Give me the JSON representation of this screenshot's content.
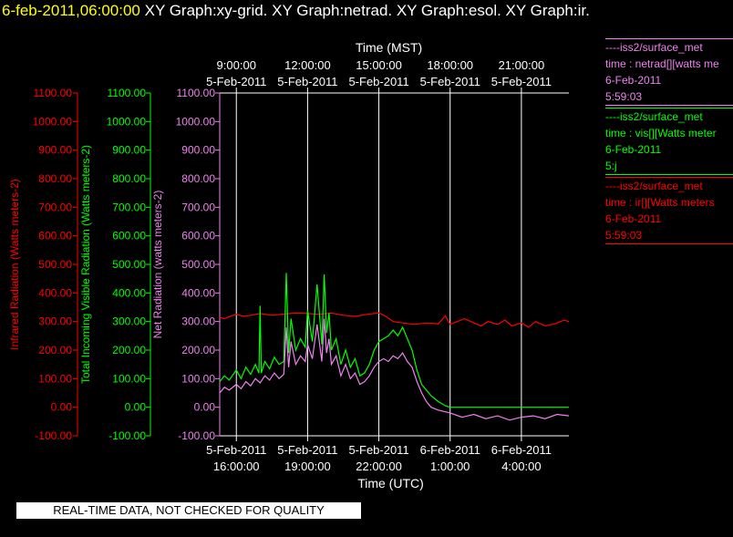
{
  "title": {
    "date": "6-feb-2011,06:00:00",
    "graphs": "XY Graph:xy-grid.  XY Graph:netrad.  XY Graph:esol.  XY Graph:ir."
  },
  "colors": {
    "ir": "#ff0000",
    "vis": "#00ff00",
    "netrad": "#ee82ee",
    "axis": "#ffffff",
    "title_date": "#ffff00"
  },
  "legend": [
    {
      "color": "#ee82ee",
      "lines": [
        "----iss2/surface_met",
        "time : netrad[][watts me",
        "6-Feb-2011",
        "5:59:03"
      ]
    },
    {
      "color": "#00ff00",
      "lines": [
        "----iss2/surface_met",
        "time : vis[][Watts meter",
        "6-Feb-2011",
        "5:j"
      ]
    },
    {
      "color": "#ff0000",
      "lines": [
        "----iss2/surface_met",
        "time : ir[][Watts meters",
        "6-Feb-2011",
        "5:59:03"
      ]
    }
  ],
  "notice": "REAL-TIME DATA, NOT CHECKED FOR QUALITY",
  "chart_data": {
    "type": "line",
    "top_axis": {
      "title": "Time (MST)",
      "ticks": [
        {
          "hours": 0,
          "time": "9:00:00",
          "date": "5-Feb-2011"
        },
        {
          "hours": 3,
          "time": "12:00:00",
          "date": "5-Feb-2011"
        },
        {
          "hours": 6,
          "time": "15:00:00",
          "date": "5-Feb-2011"
        },
        {
          "hours": 9,
          "time": "18:00:00",
          "date": "5-Feb-2011"
        },
        {
          "hours": 12,
          "time": "21:00:00",
          "date": "5-Feb-2011"
        }
      ]
    },
    "bottom_axis": {
      "title": "Time (UTC)",
      "ticks": [
        {
          "hours": 0,
          "date": "5-Feb-2011",
          "time": "16:00:00"
        },
        {
          "hours": 3,
          "date": "5-Feb-2011",
          "time": "19:00:00"
        },
        {
          "hours": 6,
          "date": "5-Feb-2011",
          "time": "22:00:00"
        },
        {
          "hours": 9,
          "date": "6-Feb-2011",
          "time": "1:00:00"
        },
        {
          "hours": 12,
          "date": "6-Feb-2011",
          "time": "4:00:00"
        }
      ]
    },
    "x_range_hours": [
      -0.7,
      14.0
    ],
    "x_note": "hours after 5-Feb-2011 16:00 UTC (9:00 MST)",
    "y_axes": [
      {
        "id": "ir",
        "label": "Infrared Radiation (Watts meters-2)",
        "color": "#ff0000",
        "range": [
          -100,
          1100
        ],
        "tick_labels": [
          "-100.00",
          "0.00",
          "100.00",
          "200.00",
          "300.00",
          "400.00",
          "500.00",
          "600.00",
          "700.00",
          "800.00",
          "900.00",
          "1000.00",
          "1100.00"
        ]
      },
      {
        "id": "vis",
        "label": "Total Incoming Visible Radiation (Watts meters-2)",
        "color": "#00ff00",
        "range": [
          -100,
          1100
        ],
        "tick_labels": [
          "-100.00",
          "0.00",
          "100.00",
          "200.00",
          "300.00",
          "400.00",
          "500.00",
          "600.00",
          "700.00",
          "800.00",
          "900.00",
          "1000.00",
          "1100.00"
        ]
      },
      {
        "id": "netrad",
        "label": "Net Radiation (watts meters-2)",
        "color": "#ee82ee",
        "range": [
          -100,
          1100
        ],
        "tick_labels": [
          "-100.00",
          "0.00",
          "100.00",
          "200.00",
          "300.00",
          "400.00",
          "500.00",
          "600.00",
          "700.00",
          "800.00",
          "900.00",
          "1000.00",
          "1100.00"
        ]
      }
    ],
    "vertical_grid_hours": [
      0,
      3,
      6,
      9,
      12
    ],
    "series": [
      {
        "id": "ir",
        "color": "#ff0000",
        "x": [
          -0.7,
          -0.5,
          -0.2,
          0,
          0.3,
          0.6,
          1,
          1.5,
          2,
          2.5,
          3,
          3.5,
          4,
          4.5,
          5,
          5.5,
          6,
          6.3,
          6.6,
          7,
          7.5,
          8,
          8.5,
          8.8,
          9,
          9.3,
          9.6,
          10,
          10.3,
          10.6,
          11,
          11.3,
          11.6,
          12,
          12.3,
          12.6,
          13,
          13.4,
          13.8,
          14
        ],
        "y": [
          315,
          310,
          320,
          325,
          318,
          322,
          328,
          322,
          326,
          330,
          328,
          325,
          330,
          322,
          318,
          325,
          330,
          318,
          300,
          295,
          290,
          295,
          292,
          320,
          290,
          300,
          310,
          295,
          285,
          300,
          290,
          305,
          285,
          295,
          280,
          300,
          285,
          292,
          305,
          300
        ]
      },
      {
        "id": "vis",
        "color": "#00ff00",
        "x": [
          -0.7,
          -0.5,
          -0.3,
          0,
          0.2,
          0.4,
          0.6,
          0.8,
          0.95,
          1.0,
          1.05,
          1.2,
          1.4,
          1.6,
          1.8,
          2.0,
          2.1,
          2.2,
          2.3,
          2.5,
          2.7,
          2.9,
          3.0,
          3.2,
          3.4,
          3.6,
          3.7,
          3.8,
          3.9,
          4.0,
          4.2,
          4.4,
          4.6,
          4.8,
          5.0,
          5.2,
          5.4,
          5.6,
          5.8,
          6.0,
          6.2,
          6.4,
          6.6,
          6.8,
          7.0,
          7.2,
          7.4,
          7.6,
          7.8,
          8.0,
          8.2,
          8.5,
          8.8,
          9.0,
          9.5,
          10,
          11,
          12,
          13,
          14
        ],
        "y": [
          90,
          110,
          95,
          130,
          100,
          140,
          115,
          150,
          120,
          355,
          120,
          160,
          135,
          175,
          150,
          160,
          470,
          190,
          310,
          200,
          240,
          210,
          340,
          230,
          430,
          220,
          465,
          260,
          330,
          200,
          240,
          150,
          200,
          140,
          170,
          110,
          120,
          150,
          200,
          230,
          240,
          250,
          270,
          250,
          280,
          240,
          200,
          130,
          80,
          60,
          40,
          20,
          5,
          0,
          0,
          0,
          0,
          0,
          0,
          0
        ]
      },
      {
        "id": "netrad",
        "color": "#ee82ee",
        "x": [
          -0.7,
          -0.5,
          -0.3,
          0,
          0.2,
          0.4,
          0.6,
          0.8,
          1.0,
          1.2,
          1.4,
          1.6,
          1.8,
          2.0,
          2.1,
          2.2,
          2.3,
          2.5,
          2.7,
          2.9,
          3.0,
          3.2,
          3.4,
          3.6,
          3.7,
          3.8,
          3.9,
          4.0,
          4.2,
          4.4,
          4.6,
          4.8,
          5.0,
          5.2,
          5.4,
          5.6,
          5.8,
          6.0,
          6.2,
          6.4,
          6.6,
          6.8,
          7.0,
          7.2,
          7.4,
          7.6,
          7.8,
          8.0,
          8.2,
          8.5,
          9.0,
          9.5,
          10,
          10.5,
          11,
          11.5,
          12,
          12.5,
          13,
          13.5,
          14
        ],
        "y": [
          50,
          70,
          60,
          80,
          65,
          90,
          75,
          100,
          85,
          110,
          95,
          120,
          100,
          115,
          280,
          140,
          230,
          150,
          180,
          160,
          220,
          170,
          290,
          160,
          310,
          190,
          240,
          150,
          180,
          110,
          150,
          100,
          120,
          80,
          90,
          110,
          140,
          160,
          170,
          160,
          180,
          170,
          190,
          160,
          140,
          90,
          50,
          20,
          0,
          -10,
          -20,
          -35,
          -25,
          -40,
          -30,
          -45,
          -35,
          -30,
          -40,
          -25,
          -30
        ]
      }
    ]
  }
}
